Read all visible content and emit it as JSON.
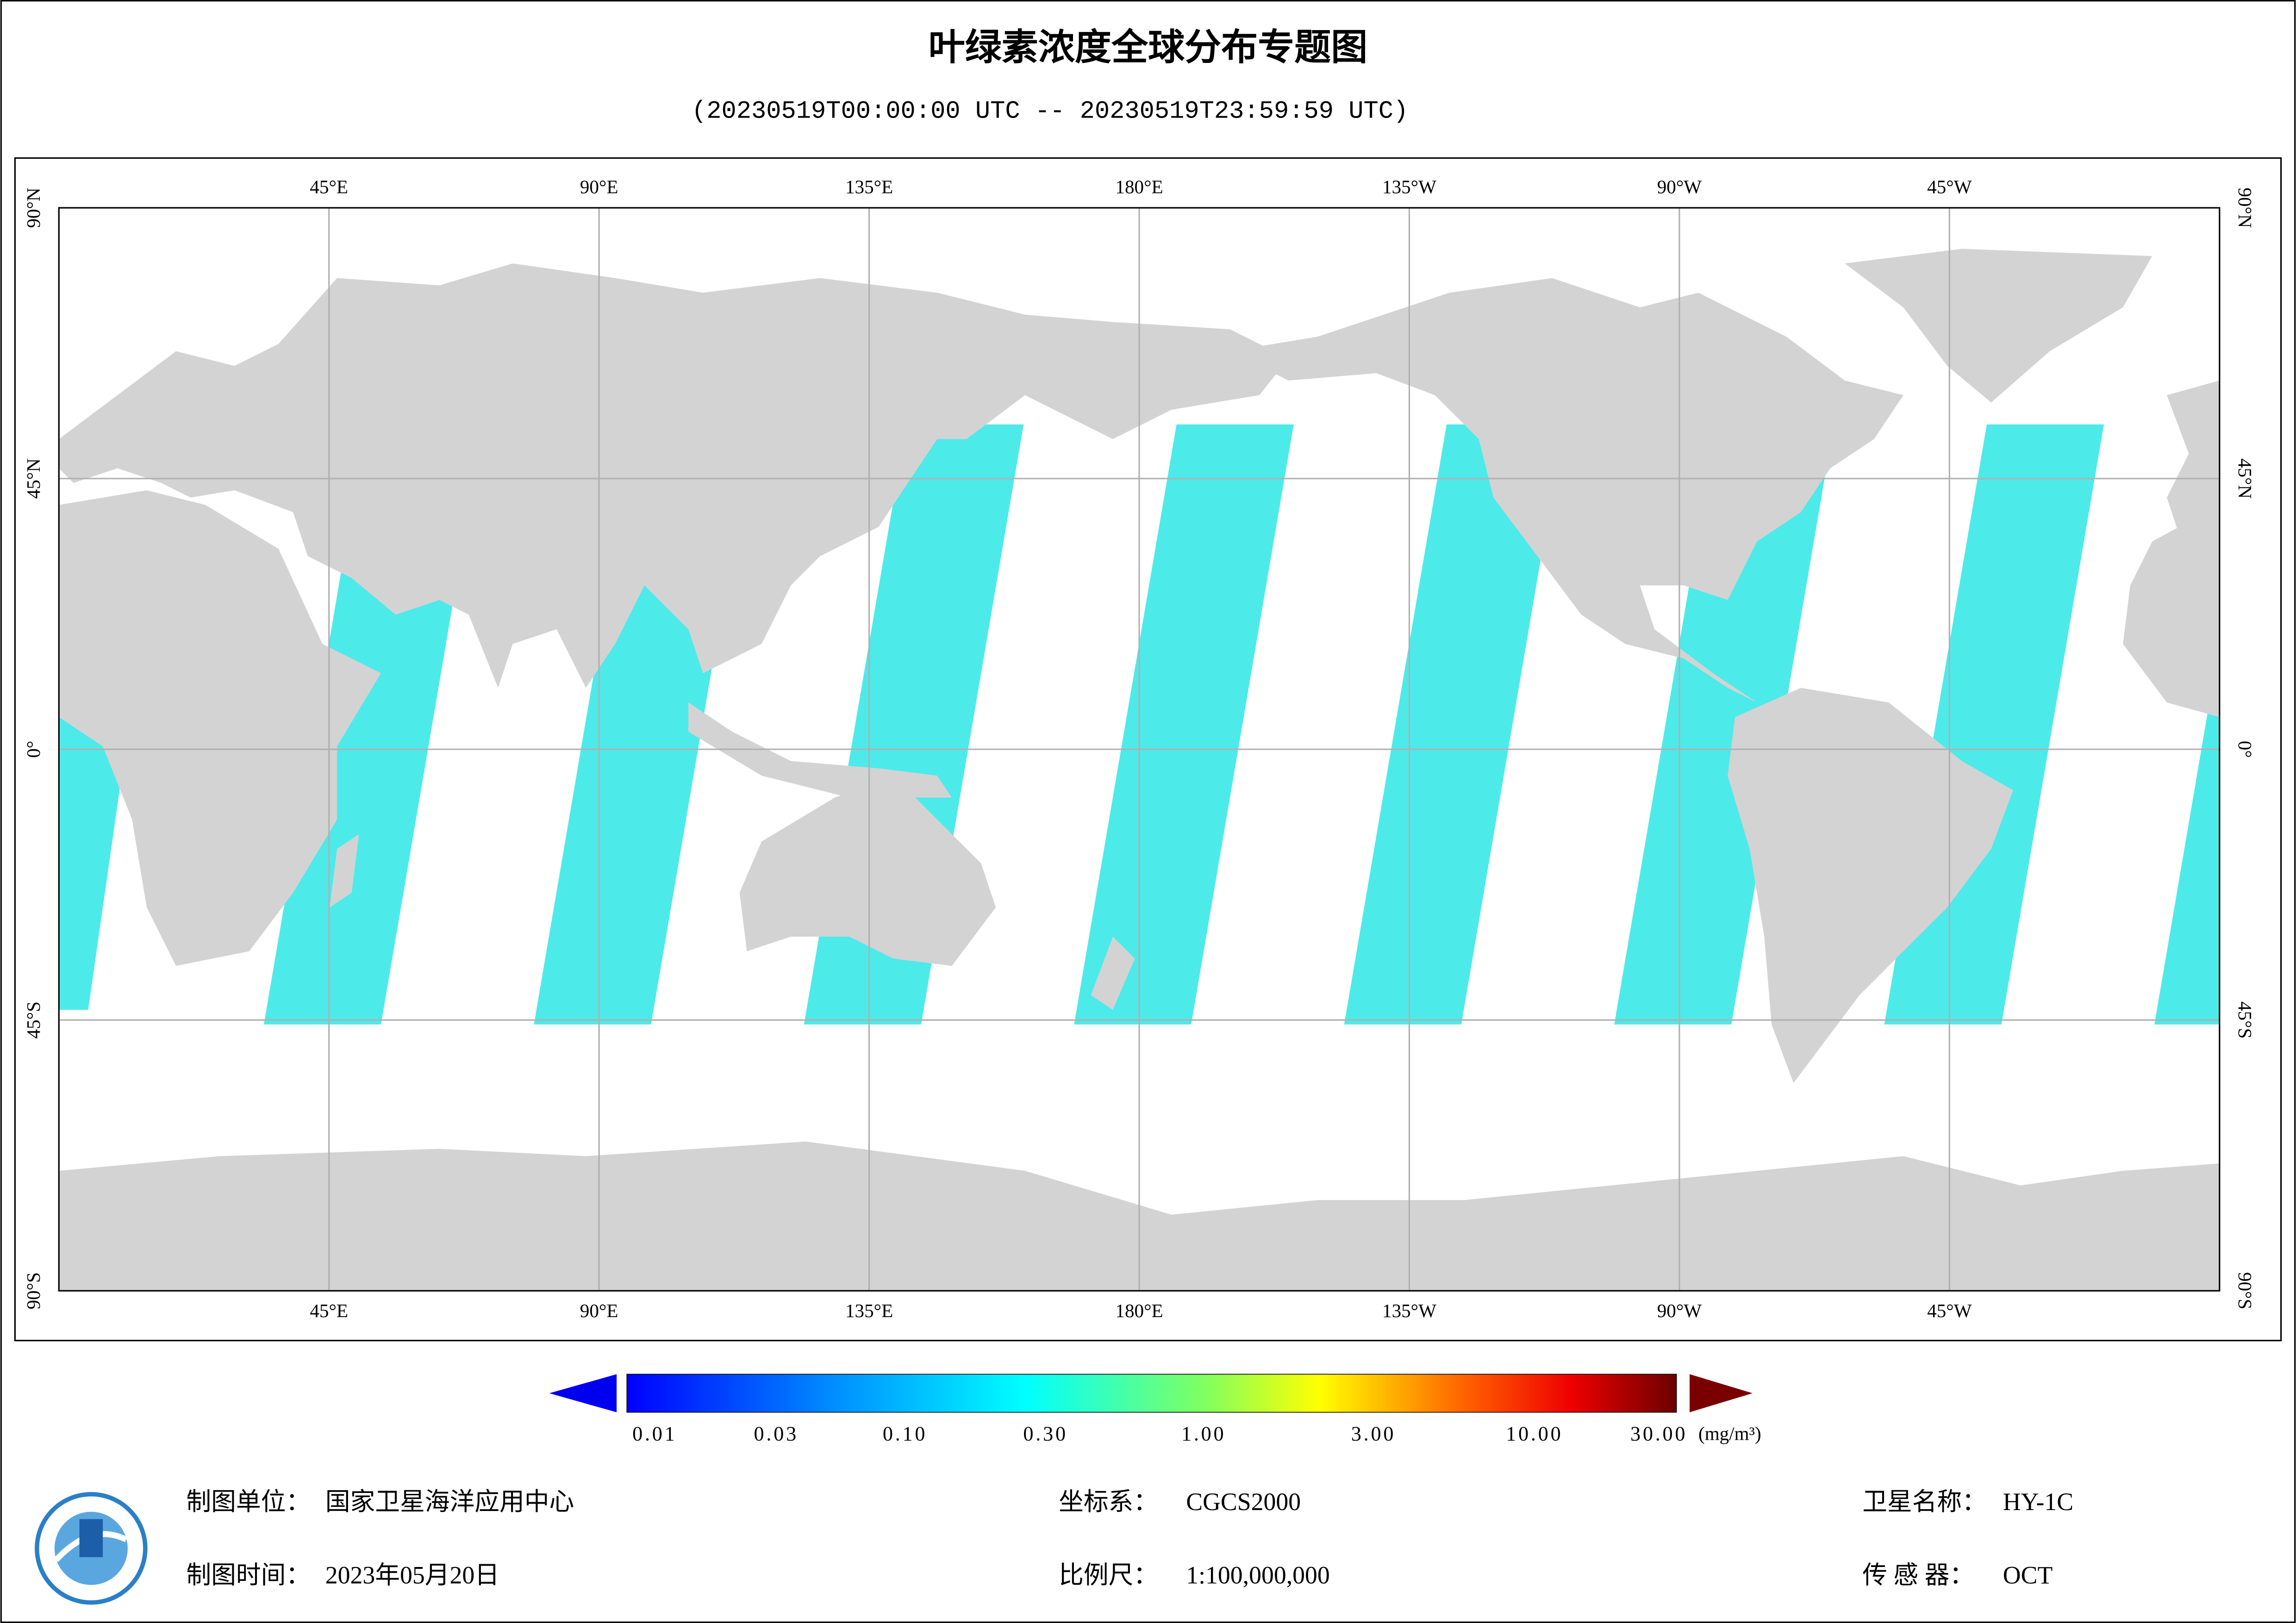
{
  "title": "叶绿素浓度全球分布专题图",
  "subtitle": "(20230519T00:00:00 UTC -- 20230519T23:59:59 UTC)",
  "map": {
    "longitude_labels": [
      "45°E",
      "90°E",
      "135°E",
      "180°E",
      "135°W",
      "90°W",
      "45°W"
    ],
    "latitude_labels": [
      "90°N",
      "45°N",
      "0°",
      "45°S",
      "90°S"
    ]
  },
  "colorbar": {
    "ticks": [
      "0.01",
      "0.03",
      "0.10",
      "0.30",
      "1.00",
      "3.00",
      "10.00",
      "30.00"
    ],
    "unit": "(mg/m³)"
  },
  "footer": [
    {
      "label": "制图单位：",
      "value": "国家卫星海洋应用中心"
    },
    {
      "label": "制图时间：",
      "value": "2023年05月20日"
    },
    {
      "label": "坐标系：",
      "value": "CGCS2000"
    },
    {
      "label": "比例尺：",
      "value": "1:100,000,000"
    },
    {
      "label": "卫星名称：",
      "value": "HY-1C"
    },
    {
      "label": "传 感 器：",
      "value": "OCT"
    }
  ]
}
